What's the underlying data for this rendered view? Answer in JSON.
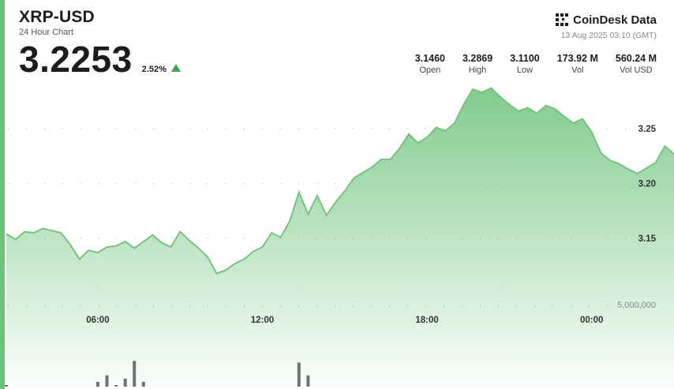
{
  "header": {
    "pair": "XRP-USD",
    "subtitle": "24 Hour Chart",
    "price": "3.2253",
    "change": "2.52%"
  },
  "brand": {
    "logo_text": "CoinDesk Data",
    "timestamp": "13 Aug 2025 03:10 (GMT)"
  },
  "stats": [
    {
      "value": "3.1460",
      "label": "Open"
    },
    {
      "value": "3.2869",
      "label": "High"
    },
    {
      "value": "3.1100",
      "label": "Low"
    },
    {
      "value": "173.92 M",
      "label": "Vol"
    },
    {
      "value": "560.24 M",
      "label": "Vol USD"
    }
  ],
  "colors": {
    "accent": "#6cc27a",
    "line": "#77c27f",
    "up": "#3fa34d",
    "volume": "#6f7470"
  },
  "chart_data": {
    "type": "line",
    "series": [
      {
        "x": [
          "02:40",
          "03:00",
          "03:20",
          "03:40",
          "04:00",
          "04:20",
          "04:40",
          "05:00",
          "05:20",
          "05:40",
          "06:00",
          "06:20",
          "06:40",
          "07:00",
          "07:20",
          "07:40",
          "08:00",
          "08:20",
          "08:40",
          "09:00",
          "09:20",
          "09:40",
          "10:00",
          "10:20",
          "10:40",
          "11:00",
          "11:20",
          "11:40",
          "12:00",
          "12:20",
          "12:40",
          "13:00",
          "13:20",
          "13:40",
          "14:00",
          "14:20",
          "14:40",
          "15:00",
          "15:20",
          "15:40",
          "16:00",
          "16:20",
          "16:40",
          "17:00",
          "17:20",
          "17:40",
          "18:00",
          "18:20",
          "18:40",
          "19:00",
          "19:20",
          "19:40",
          "20:00",
          "20:20",
          "20:40",
          "21:00",
          "21:20",
          "21:40",
          "22:00",
          "22:20",
          "22:40",
          "23:00",
          "23:20",
          "23:40",
          "00:00",
          "00:20",
          "00:40",
          "01:00",
          "01:20",
          "01:40",
          "02:00",
          "02:20",
          "02:40",
          "03:00"
        ],
        "values": [
          3.154,
          3.149,
          3.156,
          3.155,
          3.159,
          3.157,
          3.155,
          3.144,
          3.131,
          3.139,
          3.137,
          3.142,
          3.143,
          3.147,
          3.141,
          3.147,
          3.153,
          3.146,
          3.142,
          3.156,
          3.148,
          3.141,
          3.133,
          3.118,
          3.121,
          3.127,
          3.131,
          3.138,
          3.142,
          3.155,
          3.151,
          3.166,
          3.192,
          3.172,
          3.189,
          3.171,
          3.183,
          3.193,
          3.205,
          3.21,
          3.215,
          3.222,
          3.222,
          3.232,
          3.245,
          3.237,
          3.242,
          3.251,
          3.248,
          3.255,
          3.272,
          3.286,
          3.283,
          3.287,
          3.279,
          3.272,
          3.266,
          3.269,
          3.264,
          3.271,
          3.268,
          3.261,
          3.255,
          3.259,
          3.247,
          3.228,
          3.221,
          3.218,
          3.213,
          3.209,
          3.214,
          3.219,
          3.234,
          3.227
        ]
      },
      {
        "x": [
          "02:40",
          "03:00",
          "03:20",
          "03:40",
          "04:00",
          "04:20",
          "04:40",
          "05:00",
          "05:20",
          "05:40",
          "06:00",
          "06:20",
          "06:40",
          "07:00",
          "07:20",
          "07:40",
          "08:00",
          "08:20",
          "08:40",
          "09:00",
          "09:20",
          "09:40",
          "10:00",
          "10:20",
          "10:40",
          "11:00",
          "11:20",
          "11:40",
          "12:00",
          "12:20",
          "12:40",
          "13:00",
          "13:20",
          "13:40",
          "14:00",
          "14:20",
          "14:40",
          "15:00",
          "15:20",
          "15:40",
          "16:00",
          "16:20",
          "16:40",
          "17:00",
          "17:20",
          "17:40",
          "18:00",
          "18:20",
          "18:40",
          "19:00",
          "19:20",
          "19:40",
          "20:00",
          "20:20",
          "20:40",
          "21:00",
          "21:20",
          "21:40",
          "22:00",
          "22:20",
          "22:40",
          "23:00",
          "23:20",
          "23:40",
          "00:00",
          "00:20",
          "00:40",
          "01:00",
          "01:20",
          "01:40",
          "02:00",
          "02:20",
          "02:40",
          "03:00"
        ],
        "values": [
          100000,
          0,
          0,
          0,
          0,
          0,
          0,
          0,
          0,
          0,
          300000,
          700000,
          100000,
          500000,
          1600000,
          300000,
          0,
          0,
          0,
          0,
          0,
          0,
          0,
          0,
          0,
          0,
          0,
          0,
          0,
          0,
          0,
          0,
          1500000,
          700000,
          0,
          0,
          0,
          0,
          0,
          0,
          0,
          0,
          0,
          0,
          0,
          0,
          0,
          0,
          0,
          0,
          0,
          0,
          0,
          0,
          0,
          0,
          0,
          0,
          0,
          0,
          0,
          0,
          0,
          0,
          0,
          0,
          0,
          0,
          0,
          0,
          0,
          0,
          0,
          0
        ]
      }
    ],
    "y_ticks": [
      "3.15",
      "3.20",
      "3.25"
    ],
    "x_ticks": [
      "06:00",
      "12:00",
      "18:00",
      "00:00"
    ],
    "volume_tick": "5,000,000",
    "ylim": [
      3.085,
      3.305
    ],
    "volume_ylim": [
      0,
      7000000
    ]
  }
}
